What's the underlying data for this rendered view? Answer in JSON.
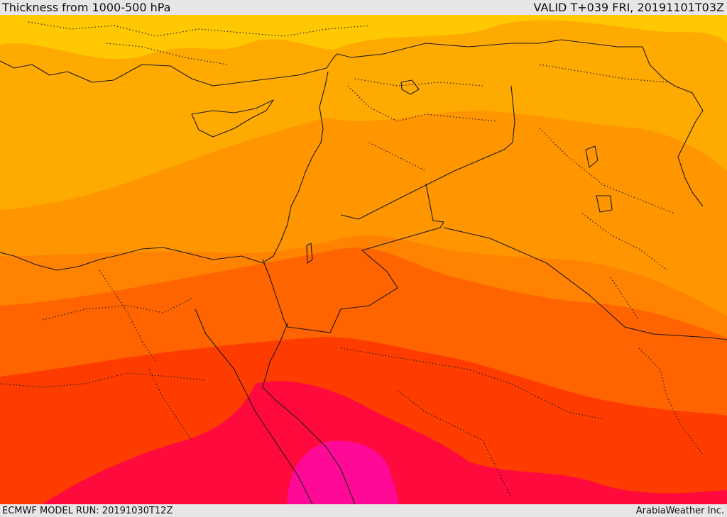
{
  "header": {
    "title": "Thickness from 1000-500 hPa",
    "valid": "VALID T+039 FRI, 20191101T03Z"
  },
  "footer": {
    "model_run": "ECMWF MODEL RUN: 20191030T12Z",
    "credit": "ArabiaWeather Inc."
  },
  "map": {
    "variable": "1000-500 hPa thickness",
    "region": "Eastern Mediterranean / Middle East",
    "color_bands": [
      "#ffc800",
      "#ffaa00",
      "#ff9600",
      "#ff8200",
      "#ff6400",
      "#ff3c00",
      "#ff0a3c",
      "#ff0a96"
    ]
  }
}
